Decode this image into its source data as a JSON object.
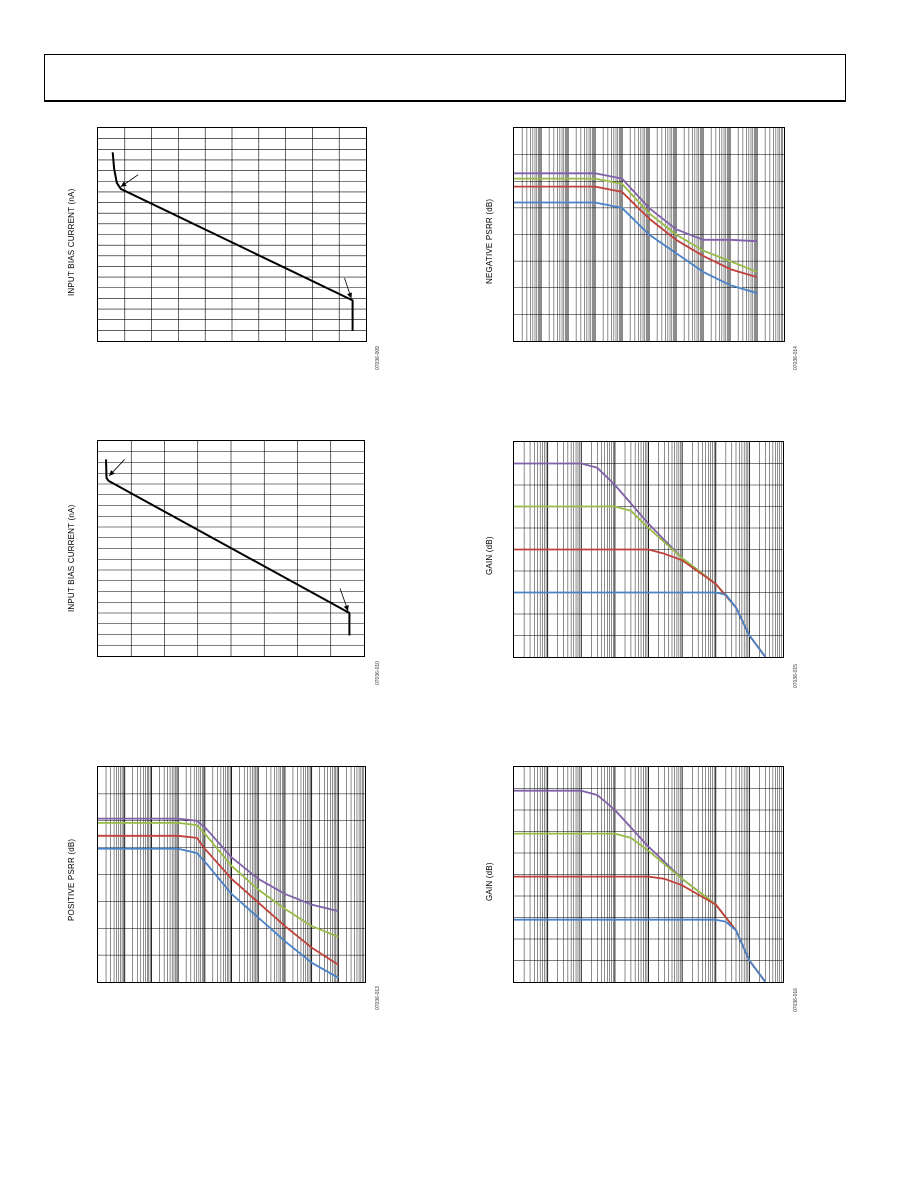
{
  "colors": {
    "purple": "#8060a8",
    "green": "#98bb48",
    "red": "#c0403a",
    "blue": "#4a82c8",
    "black": "#000000"
  },
  "chart_data": [
    {
      "id": "c1",
      "type": "line",
      "ylabel": "INPUT BIAS CURRENT (nA)",
      "code": "07036-009",
      "xscale": "linear",
      "xlim": [
        0,
        10
      ],
      "ylim": [
        0,
        10.5
      ],
      "xgrid": 10,
      "ygrid": 20,
      "series": [
        {
          "color": "black",
          "x": [
            0.55,
            0.6,
            0.7,
            0.85,
            9.5,
            9.5
          ],
          "y": [
            9.3,
            8.5,
            7.8,
            7.5,
            2.0,
            0.5
          ]
        }
      ],
      "arrows": [
        {
          "from": [
            1.5,
            8.2
          ],
          "to": [
            0.85,
            7.6
          ]
        },
        {
          "from": [
            9.2,
            3.1
          ],
          "to": [
            9.45,
            2.1
          ]
        }
      ]
    },
    {
      "id": "c2",
      "type": "line",
      "ylabel": "INPUT BIAS CURRENT (nA)",
      "code": "07036-010",
      "xscale": "linear",
      "xlim": [
        0,
        10
      ],
      "ylim": [
        0,
        10.5
      ],
      "xgrid": 8,
      "ygrid": 20,
      "series": [
        {
          "color": "black",
          "x": [
            0.3,
            0.32,
            0.4,
            9.45,
            9.45
          ],
          "y": [
            9.6,
            8.7,
            8.55,
            2.1,
            1.0
          ]
        }
      ],
      "arrows": [
        {
          "from": [
            1.0,
            9.6
          ],
          "to": [
            0.42,
            8.8
          ]
        },
        {
          "from": [
            9.1,
            3.3
          ],
          "to": [
            9.4,
            2.2
          ]
        }
      ]
    },
    {
      "id": "c3",
      "type": "line",
      "ylabel": "POSITIVE PSRR (dB)",
      "code": "07036-013",
      "xscale": "log",
      "xlim": [
        1,
        10000000000
      ],
      "ylim": [
        0,
        10
      ],
      "ygrid": 8,
      "series": [
        {
          "color": "purple",
          "x": [
            1,
            1000,
            5000,
            10000,
            100000,
            1000000,
            10000000,
            100000000,
            1000000000
          ],
          "y": [
            7.6,
            7.6,
            7.5,
            7.2,
            5.8,
            4.8,
            4.1,
            3.6,
            3.3
          ]
        },
        {
          "color": "green",
          "x": [
            1,
            1000,
            5000,
            10000,
            100000,
            1000000,
            10000000,
            100000000,
            1000000000
          ],
          "y": [
            7.4,
            7.4,
            7.3,
            6.9,
            5.4,
            4.3,
            3.4,
            2.6,
            2.1
          ]
        },
        {
          "color": "red",
          "x": [
            1,
            1000,
            5000,
            10000,
            100000,
            1000000,
            10000000,
            100000000,
            1000000000
          ],
          "y": [
            6.8,
            6.8,
            6.7,
            6.2,
            4.8,
            3.7,
            2.6,
            1.6,
            0.8
          ]
        },
        {
          "color": "blue",
          "x": [
            1,
            1000,
            5000,
            10000,
            100000,
            1000000,
            10000000,
            100000000,
            1000000000
          ],
          "y": [
            6.2,
            6.2,
            6.0,
            5.6,
            4.1,
            3.0,
            1.9,
            0.9,
            0.2
          ]
        }
      ]
    },
    {
      "id": "c4",
      "type": "line",
      "ylabel": "NEGATIVE PSRR (dB)",
      "code": "07036-014",
      "xscale": "log",
      "xlim": [
        1,
        10000000000
      ],
      "ylim": [
        0,
        8
      ],
      "ygrid": 8,
      "series": [
        {
          "color": "purple",
          "x": [
            1,
            1000,
            10000,
            100000,
            1000000,
            10000000,
            100000000,
            1000000000
          ],
          "y": [
            6.3,
            6.3,
            6.1,
            5.0,
            4.2,
            3.8,
            3.8,
            3.75
          ]
        },
        {
          "color": "green",
          "x": [
            1,
            1000,
            10000,
            100000,
            1000000,
            10000000,
            100000000,
            1000000000
          ],
          "y": [
            6.1,
            6.1,
            5.9,
            4.8,
            4.0,
            3.4,
            3.0,
            2.6
          ]
        },
        {
          "color": "red",
          "x": [
            1,
            1000,
            10000,
            100000,
            1000000,
            10000000,
            100000000,
            1000000000
          ],
          "y": [
            5.8,
            5.8,
            5.6,
            4.6,
            3.8,
            3.2,
            2.7,
            2.4
          ]
        },
        {
          "color": "blue",
          "x": [
            1,
            1000,
            10000,
            100000,
            1000000,
            10000000,
            100000000,
            1000000000
          ],
          "y": [
            5.2,
            5.2,
            5.0,
            4.0,
            3.3,
            2.6,
            2.1,
            1.8
          ]
        }
      ]
    },
    {
      "id": "c5",
      "type": "line",
      "ylabel": "GAIN (dB)",
      "code": "07036-015",
      "xscale": "log",
      "xlim": [
        1,
        100000000
      ],
      "ylim": [
        0,
        10
      ],
      "ygrid": 10,
      "series": [
        {
          "color": "purple",
          "x": [
            1,
            100,
            300,
            1000,
            10000,
            100000,
            1000000,
            4000000,
            10000000,
            30000000
          ],
          "y": [
            9.0,
            9.0,
            8.8,
            8.0,
            6.2,
            4.6,
            3.4,
            2.3,
            1.0,
            0.0
          ]
        },
        {
          "color": "green",
          "x": [
            1,
            1000,
            3000,
            10000,
            100000,
            1000000,
            4000000,
            10000000,
            30000000
          ],
          "y": [
            7.0,
            7.0,
            6.8,
            6.0,
            4.6,
            3.4,
            2.3,
            1.0,
            0.0
          ]
        },
        {
          "color": "red",
          "x": [
            1,
            10000,
            30000,
            100000,
            1000000,
            4000000,
            10000000,
            30000000
          ],
          "y": [
            5.0,
            5.0,
            4.8,
            4.5,
            3.4,
            2.3,
            1.0,
            0.0
          ]
        },
        {
          "color": "blue",
          "x": [
            1,
            100000,
            1000000,
            2000000,
            4000000,
            10000000,
            30000000
          ],
          "y": [
            3.0,
            3.0,
            3.0,
            2.9,
            2.3,
            1.0,
            0.0
          ]
        }
      ]
    },
    {
      "id": "c6",
      "type": "line",
      "ylabel": "GAIN (dB)",
      "code": "07036-016",
      "xscale": "log",
      "xlim": [
        1,
        100000000
      ],
      "ylim": [
        0,
        10
      ],
      "ygrid": 10,
      "series": [
        {
          "color": "purple",
          "x": [
            1,
            100,
            300,
            1000,
            10000,
            100000,
            1000000,
            4000000,
            10000000,
            30000000
          ],
          "y": [
            8.9,
            8.9,
            8.7,
            8.0,
            6.3,
            4.8,
            3.6,
            2.4,
            1.0,
            0.0
          ]
        },
        {
          "color": "green",
          "x": [
            1,
            1000,
            3000,
            10000,
            100000,
            1000000,
            4000000,
            10000000,
            30000000
          ],
          "y": [
            6.9,
            6.9,
            6.7,
            6.1,
            4.8,
            3.6,
            2.4,
            1.0,
            0.0
          ]
        },
        {
          "color": "red",
          "x": [
            1,
            10000,
            30000,
            100000,
            1000000,
            4000000,
            10000000,
            30000000
          ],
          "y": [
            4.9,
            4.9,
            4.8,
            4.5,
            3.6,
            2.4,
            1.0,
            0.0
          ]
        },
        {
          "color": "blue",
          "x": [
            1,
            100000,
            1000000,
            2000000,
            4000000,
            10000000,
            30000000
          ],
          "y": [
            2.9,
            2.9,
            2.9,
            2.8,
            2.4,
            1.0,
            0.0
          ]
        }
      ]
    }
  ]
}
